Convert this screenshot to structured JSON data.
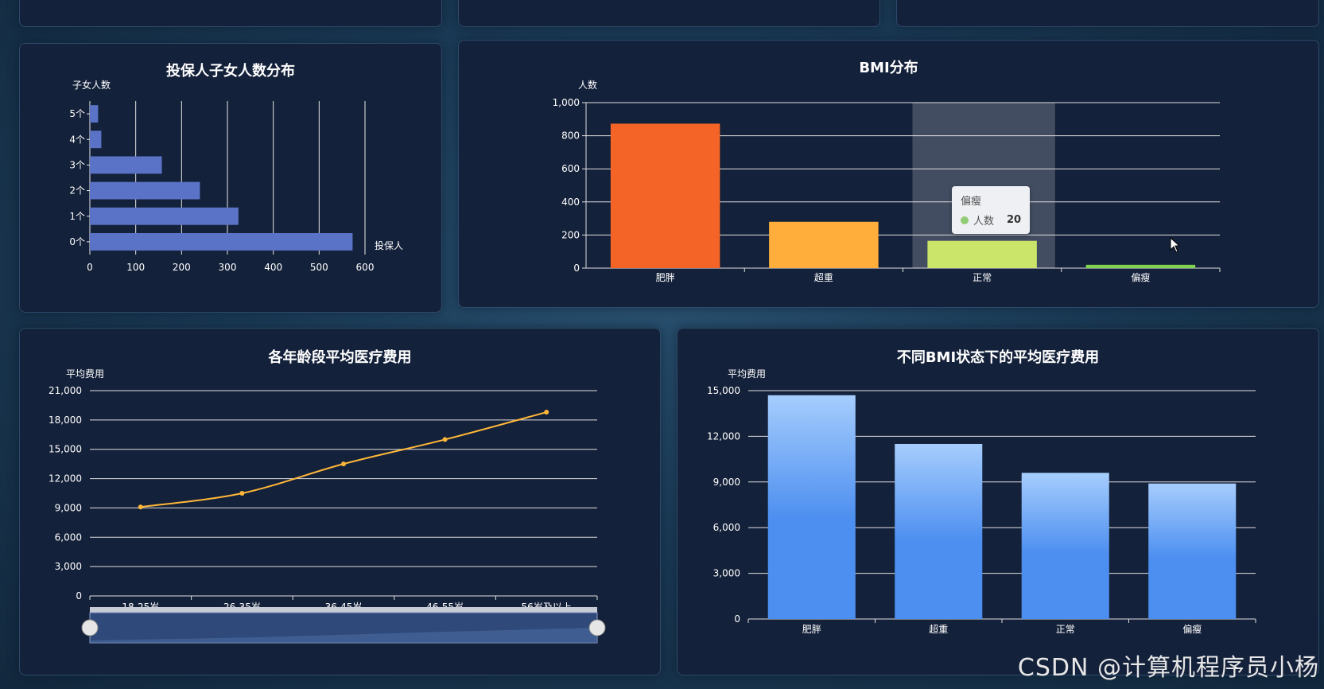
{
  "panels": {
    "children": {
      "title": "投保人子女人数分布"
    },
    "bmi": {
      "title": "BMI分布"
    },
    "age": {
      "title": "各年龄段平均医疗费用"
    },
    "bmi_cost": {
      "title": "不同BMI状态下的平均医疗费用"
    }
  },
  "tooltip": {
    "category": "偏瘦",
    "series": "人数",
    "value": "20",
    "dot_color": "#91cc75"
  },
  "watermark": "CSDN @计算机程序员小杨",
  "chart_data": [
    {
      "id": "children",
      "type": "bar",
      "orientation": "horizontal",
      "title": "投保人子女人数分布",
      "xlabel": "投保人",
      "ylabel": "子女人数",
      "categories": [
        "0个",
        "1个",
        "2个",
        "3个",
        "4个",
        "5个"
      ],
      "values": [
        573,
        324,
        240,
        157,
        25,
        18
      ],
      "xlim": [
        0,
        600
      ],
      "xticks": [
        "0",
        "100",
        "200",
        "300",
        "400",
        "500",
        "600"
      ],
      "color": "#5b73c7",
      "grid": true
    },
    {
      "id": "bmi",
      "type": "bar",
      "title": "BMI分布",
      "ylabel": "人数",
      "categories": [
        "肥胖",
        "超重",
        "正常",
        "偏瘦"
      ],
      "values": [
        873,
        280,
        165,
        20
      ],
      "colors": [
        "#f46427",
        "#ffad3b",
        "#cbe56a",
        "#7fd34f"
      ],
      "ylim": [
        0,
        1000
      ],
      "yticks": [
        "0",
        "200",
        "400",
        "600",
        "800",
        "1,000"
      ],
      "highlight_index": 3,
      "grid": true
    },
    {
      "id": "age",
      "type": "line",
      "title": "各年龄段平均医疗费用",
      "ylabel": "平均费用",
      "categories": [
        "18-25岁",
        "26-35岁",
        "36-45岁",
        "46-55岁",
        "56岁及以上"
      ],
      "values": [
        9100,
        10500,
        13500,
        16000,
        18800
      ],
      "ylim": [
        0,
        21000
      ],
      "yticks": [
        "0",
        "3,000",
        "6,000",
        "9,000",
        "12,000",
        "15,000",
        "18,000",
        "21,000"
      ],
      "color": "#ffb739",
      "smooth": true,
      "data_zoom": true,
      "grid": true
    },
    {
      "id": "bmi_cost",
      "type": "bar",
      "title": "不同BMI状态下的平均医疗费用",
      "ylabel": "平均费用",
      "categories": [
        "肥胖",
        "超重",
        "正常",
        "偏瘦"
      ],
      "values": [
        14700,
        11500,
        9600,
        8900
      ],
      "ylim": [
        0,
        15000
      ],
      "yticks": [
        "0",
        "3,000",
        "6,000",
        "9,000",
        "12,000",
        "15,000"
      ],
      "gradient": [
        "#a6cdfd",
        "#4d8ff0"
      ],
      "grid": true
    }
  ]
}
